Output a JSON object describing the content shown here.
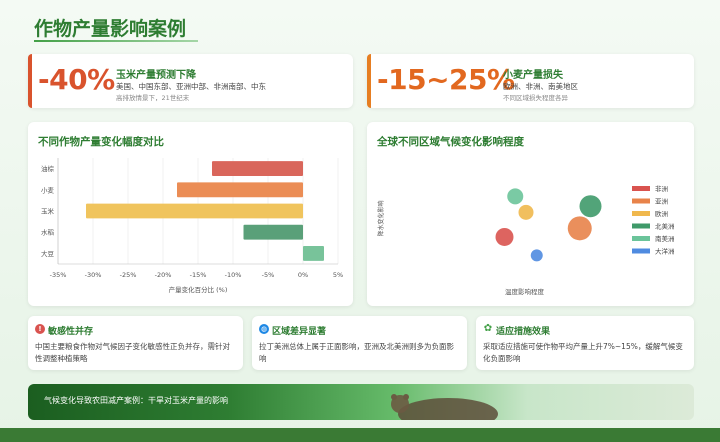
{
  "page": {
    "title": "作物产量影响案例"
  },
  "stats": [
    {
      "value": "-40%",
      "heading": "玉米产量预测下降",
      "regions": "美国、中国东部、亚洲中部、非洲南部、中东",
      "note": "高排放情景下，21世纪末",
      "accent": "#d9532d"
    },
    {
      "value": "-15~25%",
      "heading": "小麦产量损失",
      "regions": "欧洲、非洲、南美地区",
      "note": "不同区域损失程度各异",
      "accent": "#e67e22"
    }
  ],
  "bar_chart": {
    "title": "不同作物产量变化幅度对比",
    "xlabel": "产量变化百分比 (%)",
    "x_ticks": [
      "-35%",
      "-30%",
      "-25%",
      "-20%",
      "-15%",
      "-10%",
      "-5%",
      "0%",
      "5%"
    ],
    "colors": [
      "#d9665b",
      "#eb8d55",
      "#f0c45d",
      "#5aa079",
      "#78c39a"
    ]
  },
  "bubble_chart": {
    "title": "全球不同区域气候变化影响程度",
    "xlabel": "温度影响程度",
    "ylabel": "降水变化影响",
    "legend": [
      {
        "label": "非洲",
        "color": "#d9534f"
      },
      {
        "label": "亚洲",
        "color": "#e8834a"
      },
      {
        "label": "欧洲",
        "color": "#f0b84d"
      },
      {
        "label": "北美洲",
        "color": "#3f9a6a"
      },
      {
        "label": "南美洲",
        "color": "#6bc49a"
      },
      {
        "label": "大洋洲",
        "color": "#4f8be0"
      }
    ]
  },
  "chart_data": [
    {
      "type": "bar",
      "orientation": "horizontal",
      "title": "不同作物产量变化幅度对比",
      "xlabel": "产量变化百分比 (%)",
      "ylabel": "",
      "categories": [
        "油棕",
        "小麦",
        "玉米",
        "水稻",
        "大豆"
      ],
      "values": [
        -13,
        -18,
        -31,
        -8.5,
        3
      ],
      "xlim": [
        -35,
        5
      ],
      "grid": true
    },
    {
      "type": "scatter",
      "title": "全球不同区域气候变化影响程度",
      "xlabel": "温度影响程度",
      "ylabel": "降水变化影响",
      "series": [
        {
          "name": "非洲",
          "x": 0.5,
          "y": 0.35,
          "size": 18
        },
        {
          "name": "亚洲",
          "x": 0.85,
          "y": 0.42,
          "size": 24
        },
        {
          "name": "欧洲",
          "x": 0.6,
          "y": 0.55,
          "size": 15
        },
        {
          "name": "北美洲",
          "x": 0.9,
          "y": 0.6,
          "size": 22
        },
        {
          "name": "南美洲",
          "x": 0.55,
          "y": 0.68,
          "size": 16
        },
        {
          "name": "大洋洲",
          "x": 0.65,
          "y": 0.2,
          "size": 12
        }
      ],
      "legend_position": "right"
    }
  ],
  "info_cards": [
    {
      "heading": "敏感性并存",
      "body": "中国主要粮食作物对气候因子变化敏感性正负并存，需针对性调整种植策略",
      "icon": "alert-icon",
      "icon_color": "#d9534f"
    },
    {
      "heading": "区域差异显著",
      "body": "拉丁美洲总体上属于正面影响，亚洲及北美洲则多为负面影响",
      "icon": "globe-icon",
      "icon_color": "#1e88e5"
    },
    {
      "heading": "适应措施效果",
      "body": "采取适应措施可使作物平均产量上升7%~15%，缓解气候变化负面影响",
      "icon": "sprout-icon",
      "icon_color": "#43a047"
    }
  ],
  "banner": {
    "caption": "气候变化导致农田减产案例：干旱对玉米产量的影响"
  }
}
